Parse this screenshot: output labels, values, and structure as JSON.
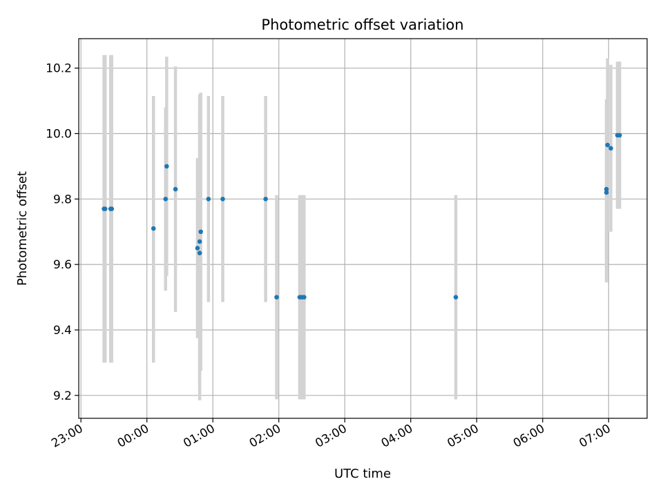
{
  "chart_data": {
    "type": "scatter",
    "title": "Photometric offset variation",
    "xlabel": "UTC time",
    "ylabel": "Photometric offset",
    "x_axis_kind": "time",
    "xlim": [
      "22:58",
      "07:35"
    ],
    "ylim": [
      9.13,
      10.29
    ],
    "x_ticks": [
      "23:00",
      "00:00",
      "01:00",
      "02:00",
      "03:00",
      "04:00",
      "05:00",
      "06:00",
      "07:00"
    ],
    "y_ticks": [
      9.2,
      9.4,
      9.6,
      9.8,
      10.0,
      10.2
    ],
    "y_tick_labels": [
      "9.2",
      "9.4",
      "9.6",
      "9.8",
      "10.0",
      "10.2"
    ],
    "grid": true,
    "legend": "none",
    "colors": {
      "points": "#1f77b4",
      "error_bars": "#d3d3d3",
      "grid": "#b0b0b0"
    },
    "points": [
      {
        "x": "23:21",
        "y": 9.77,
        "ylow": 9.3,
        "yhigh": 10.24
      },
      {
        "x": "23:22",
        "y": 9.77,
        "ylow": 9.3,
        "yhigh": 10.24
      },
      {
        "x": "23:27",
        "y": 9.77,
        "ylow": 9.3,
        "yhigh": 10.24
      },
      {
        "x": "23:28",
        "y": 9.77,
        "ylow": 9.3,
        "yhigh": 10.24
      },
      {
        "x": "00:06",
        "y": 9.71,
        "ylow": 9.3,
        "yhigh": 10.115
      },
      {
        "x": "00:17",
        "y": 9.8,
        "ylow": 9.52,
        "yhigh": 10.08
      },
      {
        "x": "00:18",
        "y": 9.9,
        "ylow": 9.565,
        "yhigh": 10.235
      },
      {
        "x": "00:26",
        "y": 9.83,
        "ylow": 9.455,
        "yhigh": 10.205
      },
      {
        "x": "00:46",
        "y": 9.65,
        "ylow": 9.375,
        "yhigh": 9.925
      },
      {
        "x": "00:48",
        "y": 9.67,
        "ylow": 9.22,
        "yhigh": 10.12
      },
      {
        "x": "00:48",
        "y": 9.635,
        "ylow": 9.185,
        "yhigh": 10.085
      },
      {
        "x": "00:49",
        "y": 9.7,
        "ylow": 9.275,
        "yhigh": 10.125
      },
      {
        "x": "00:56",
        "y": 9.8,
        "ylow": 9.485,
        "yhigh": 10.115
      },
      {
        "x": "01:09",
        "y": 9.8,
        "ylow": 9.485,
        "yhigh": 10.115
      },
      {
        "x": "01:48",
        "y": 9.8,
        "ylow": 9.485,
        "yhigh": 10.115
      },
      {
        "x": "01:58",
        "y": 9.5,
        "ylow": 9.188,
        "yhigh": 9.812
      },
      {
        "x": "02:19",
        "y": 9.5,
        "ylow": 9.188,
        "yhigh": 9.812
      },
      {
        "x": "02:21",
        "y": 9.5,
        "ylow": 9.188,
        "yhigh": 9.812
      },
      {
        "x": "02:23",
        "y": 9.5,
        "ylow": 9.188,
        "yhigh": 9.812
      },
      {
        "x": "04:41",
        "y": 9.5,
        "ylow": 9.188,
        "yhigh": 9.812
      },
      {
        "x": "06:58",
        "y": 9.82,
        "ylow": 9.545,
        "yhigh": 10.105
      },
      {
        "x": "06:58",
        "y": 9.83,
        "ylow": 9.56,
        "yhigh": 10.095
      },
      {
        "x": "06:59",
        "y": 9.965,
        "ylow": 9.7,
        "yhigh": 10.23
      },
      {
        "x": "07:02",
        "y": 9.955,
        "ylow": 9.7,
        "yhigh": 10.21
      },
      {
        "x": "07:08",
        "y": 9.995,
        "ylow": 9.77,
        "yhigh": 10.22
      },
      {
        "x": "07:10",
        "y": 9.995,
        "ylow": 9.77,
        "yhigh": 10.22
      }
    ]
  }
}
